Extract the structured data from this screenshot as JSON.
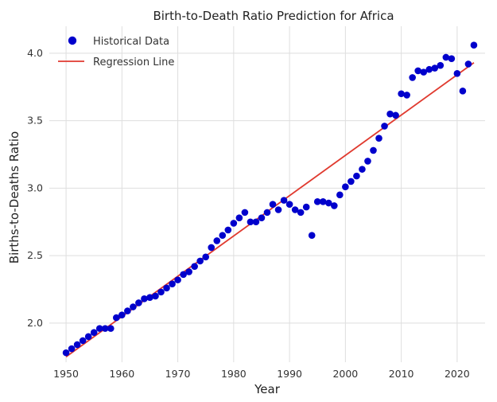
{
  "chart_data": {
    "type": "scatter",
    "title": "Birth-to-Death Ratio Prediction for Africa",
    "xlabel": "Year",
    "ylabel": "Births-to-Deaths Ratio",
    "xlim": [
      1947,
      2025
    ],
    "ylim": [
      1.71,
      4.2
    ],
    "x_ticks": [
      1950,
      1960,
      1970,
      1980,
      1990,
      2000,
      2010,
      2020
    ],
    "y_ticks": [
      2.0,
      2.5,
      3.0,
      3.5,
      4.0
    ],
    "x_tick_labels": [
      "1950",
      "1960",
      "1970",
      "1980",
      "1990",
      "2000",
      "2010",
      "2020"
    ],
    "y_tick_labels": [
      "2.0",
      "2.5",
      "3.0",
      "3.5",
      "4.0"
    ],
    "grid": true,
    "legend_position": "top-left",
    "series": [
      {
        "name": "Historical Data",
        "type": "scatter",
        "color": "#0000cc",
        "x": [
          1950,
          1951,
          1952,
          1953,
          1954,
          1955,
          1956,
          1957,
          1958,
          1959,
          1960,
          1961,
          1962,
          1963,
          1964,
          1965,
          1966,
          1967,
          1968,
          1969,
          1970,
          1971,
          1972,
          1973,
          1974,
          1975,
          1976,
          1977,
          1978,
          1979,
          1980,
          1981,
          1982,
          1983,
          1984,
          1985,
          1986,
          1987,
          1988,
          1989,
          1990,
          1991,
          1992,
          1993,
          1994,
          1995,
          1996,
          1997,
          1998,
          1999,
          2000,
          2001,
          2002,
          2003,
          2004,
          2005,
          2006,
          2007,
          2008,
          2009,
          2010,
          2011,
          2012,
          2013,
          2014,
          2015,
          2016,
          2017,
          2018,
          2019,
          2020,
          2021,
          2022,
          2023
        ],
        "y": [
          1.78,
          1.81,
          1.84,
          1.87,
          1.9,
          1.93,
          1.96,
          1.96,
          1.96,
          2.04,
          2.06,
          2.09,
          2.12,
          2.15,
          2.18,
          2.19,
          2.2,
          2.23,
          2.26,
          2.29,
          2.32,
          2.36,
          2.38,
          2.42,
          2.46,
          2.49,
          2.56,
          2.61,
          2.65,
          2.69,
          2.74,
          2.78,
          2.82,
          2.75,
          2.75,
          2.78,
          2.82,
          2.88,
          2.84,
          2.91,
          2.88,
          2.84,
          2.82,
          2.86,
          2.65,
          2.9,
          2.9,
          2.89,
          2.87,
          2.95,
          3.01,
          3.05,
          3.09,
          3.14,
          3.2,
          3.28,
          3.37,
          3.46,
          3.55,
          3.54,
          3.7,
          3.69,
          3.82,
          3.87,
          3.86,
          3.88,
          3.89,
          3.91,
          3.97,
          3.96,
          3.85,
          3.72,
          3.92,
          4.06
        ]
      },
      {
        "name": "Regression Line",
        "type": "line",
        "color": "#e03a2f",
        "x": [
          1950,
          2023
        ],
        "y": [
          1.75,
          3.93
        ]
      }
    ]
  }
}
